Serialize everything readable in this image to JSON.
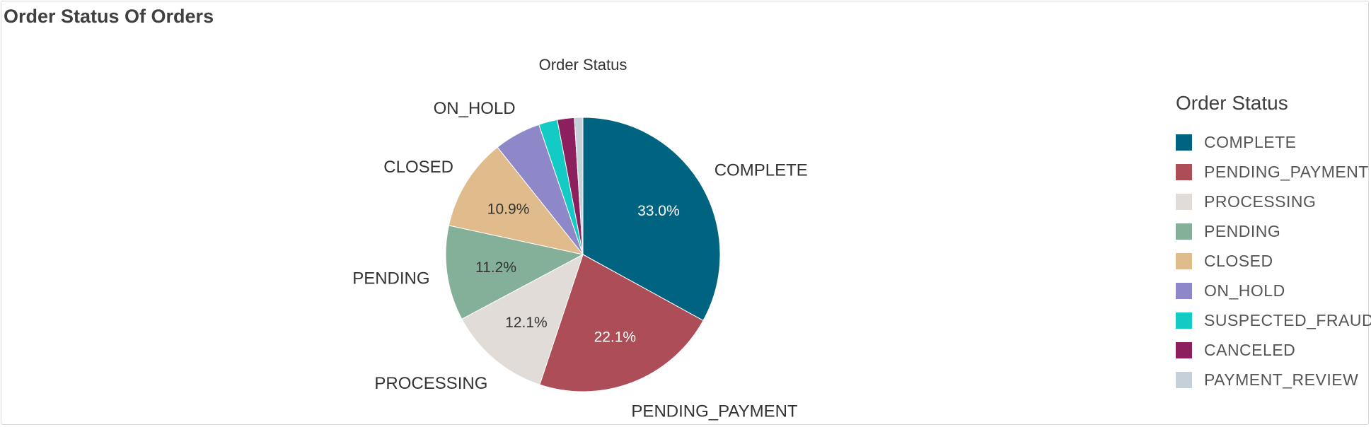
{
  "panel": {
    "title": "Order Status Of Orders"
  },
  "legend": {
    "title": "Order Status"
  },
  "chart_data": {
    "type": "pie",
    "title": "Order Status",
    "legend_position": "right",
    "slices": [
      {
        "label": "COMPLETE",
        "value": 33.0,
        "color": "#006480",
        "value_label": "33.0%",
        "label_color": "#ffffff"
      },
      {
        "label": "PENDING_PAYMENT",
        "value": 22.1,
        "color": "#ad4d58",
        "value_label": "22.1%",
        "label_color": "#ffffff"
      },
      {
        "label": "PROCESSING",
        "value": 12.1,
        "color": "#e1dcd7",
        "value_label": "12.1%",
        "label_color": "#333333"
      },
      {
        "label": "PENDING",
        "value": 11.2,
        "color": "#84b09a",
        "value_label": "11.2%",
        "label_color": "#333333"
      },
      {
        "label": "CLOSED",
        "value": 10.9,
        "color": "#e0bc8d",
        "value_label": "10.9%",
        "label_color": "#333333"
      },
      {
        "label": "ON_HOLD",
        "value": 5.5,
        "color": "#8e88c8",
        "value_label": "",
        "label_color": "#333333"
      },
      {
        "label": "SUSPECTED_FRAUD",
        "value": 2.2,
        "color": "#13cbc4",
        "value_label": "",
        "label_color": "#333333"
      },
      {
        "label": "CANCELED",
        "value": 2.0,
        "color": "#8c1f5d",
        "value_label": "",
        "label_color": "#333333"
      },
      {
        "label": "PAYMENT_REVIEW",
        "value": 1.0,
        "color": "#c6d0d9",
        "value_label": "",
        "label_color": "#333333"
      }
    ],
    "outside_labels": [
      "COMPLETE",
      "PENDING_PAYMENT",
      "PROCESSING",
      "PENDING",
      "CLOSED",
      "ON_HOLD"
    ]
  }
}
